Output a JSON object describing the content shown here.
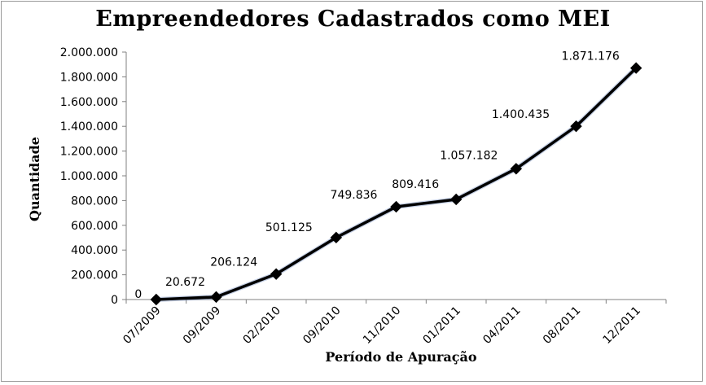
{
  "chart_data": {
    "type": "line",
    "title": "Empreendedores Cadastrados como MEI",
    "xlabel": "Período de Apuração",
    "ylabel": "Quantidade",
    "categories": [
      "07/2009",
      "09/2009",
      "02/2010",
      "09/2010",
      "11/2010",
      "01/2011",
      "04/2011",
      "08/2011",
      "12/2011"
    ],
    "values": [
      0,
      20672,
      206124,
      501125,
      749836,
      809416,
      1057182,
      1400435,
      1871176
    ],
    "data_labels": [
      "0",
      "20.672",
      "206.124",
      "501.125",
      "749.836",
      "809.416",
      "1.057.182",
      "1.400.435",
      "1.871.176"
    ],
    "ylim": [
      0,
      2000000
    ],
    "yticks": [
      0,
      200000,
      400000,
      600000,
      800000,
      1000000,
      1200000,
      1400000,
      1600000,
      1800000,
      2000000
    ],
    "ytick_labels": [
      "0",
      "200.000",
      "400.000",
      "600.000",
      "800.000",
      "1.000.000",
      "1.200.000",
      "1.400.000",
      "1.600.000",
      "1.800.000",
      "2.000.000"
    ],
    "grid": false,
    "legend": "none",
    "line_color": "#000000",
    "marker": "diamond",
    "colors": {
      "line": "#000000",
      "shadow": "#5a78b4",
      "axis": "#808080"
    }
  }
}
